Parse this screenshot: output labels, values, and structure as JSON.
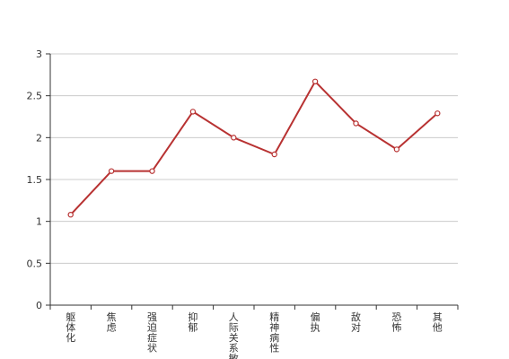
{
  "chart_data": {
    "type": "line",
    "title": "",
    "xlabel": "",
    "ylabel": "",
    "categories": [
      "躯体化",
      "焦虑",
      "强迫症状",
      "抑郁",
      "人际关系敏感",
      "精神病性",
      "偏执",
      "敌对",
      "恐怖",
      "其他"
    ],
    "series": [
      {
        "values": [
          1.08,
          1.6,
          1.6,
          2.31,
          2.0,
          1.8,
          2.67,
          2.17,
          1.86,
          2.29
        ]
      }
    ],
    "ylim": [
      0,
      3
    ],
    "yticks": [
      0,
      0.5,
      1,
      1.5,
      2,
      2.5,
      3
    ],
    "ytick_labels": [
      "0",
      "0.5",
      "1",
      "1.5",
      "2",
      "2.5",
      "3"
    ],
    "grid": true,
    "colors": {
      "line": "#b83232",
      "grid": "#cccccc",
      "axis": "#333333"
    }
  }
}
